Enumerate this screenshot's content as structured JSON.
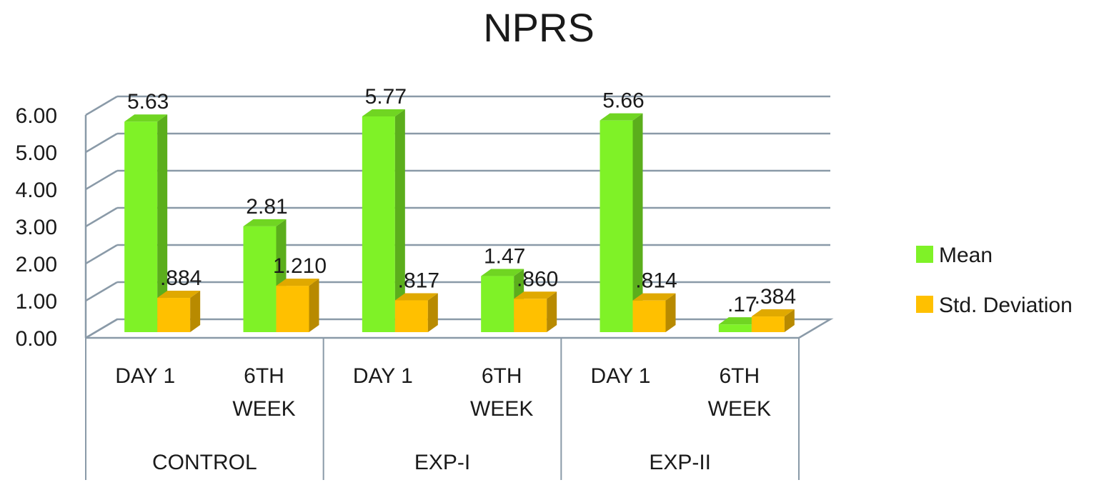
{
  "chart_data": {
    "type": "bar",
    "title": "NPRS",
    "xlabel": "",
    "ylabel": "",
    "ylim": [
      0,
      6
    ],
    "yticks": [
      "0.00",
      "1.00",
      "2.00",
      "3.00",
      "4.00",
      "5.00",
      "6.00"
    ],
    "ytick_values": [
      0,
      1,
      2,
      3,
      4,
      5,
      6
    ],
    "groups": [
      {
        "label": "CONTROL",
        "categories": [
          [
            "DAY 1"
          ],
          [
            "6TH",
            "WEEK"
          ]
        ]
      },
      {
        "label": "EXP-I",
        "categories": [
          [
            "DAY 1"
          ],
          [
            "6TH",
            "WEEK"
          ]
        ]
      },
      {
        "label": "EXP-II",
        "categories": [
          [
            "DAY 1"
          ],
          [
            "6TH",
            "WEEK"
          ]
        ]
      }
    ],
    "series": [
      {
        "name": "Mean",
        "values": [
          5.63,
          2.81,
          5.77,
          1.47,
          5.66,
          0.17
        ],
        "labels": [
          "5.63",
          "2.81",
          "5.77",
          "1.47",
          "5.66",
          ".17"
        ],
        "color": "#7ff227"
      },
      {
        "name": "Std. Deviation",
        "values": [
          0.884,
          1.21,
          0.817,
          0.86,
          0.814,
          0.384
        ],
        "labels": [
          ".884",
          "1.210",
          ".817",
          ".860",
          ".814",
          ".384"
        ],
        "color": "#ffc000"
      }
    ],
    "grid": true,
    "legend_position": "right",
    "style": "3d-clustered-column"
  }
}
